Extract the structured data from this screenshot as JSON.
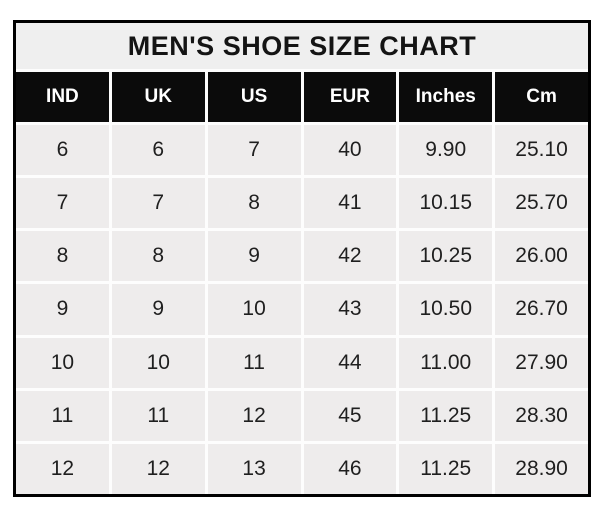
{
  "colors": {
    "border": "#000000",
    "title_bg": "#efefef",
    "header_bg": "#0b0b0b",
    "header_text": "#ffffff",
    "cell_bg": "#eeecec",
    "cell_text": "#1f1f1f",
    "gridline": "#fdfdfd",
    "page_bg": "#ffffff"
  },
  "chart_data": {
    "type": "table",
    "title": "MEN'S SHOE SIZE CHART",
    "columns": [
      "IND",
      "UK",
      "US",
      "EUR",
      "Inches",
      "Cm"
    ],
    "rows": [
      [
        "6",
        "6",
        "7",
        "40",
        "9.90",
        "25.10"
      ],
      [
        "7",
        "7",
        "8",
        "41",
        "10.15",
        "25.70"
      ],
      [
        "8",
        "8",
        "9",
        "42",
        "10.25",
        "26.00"
      ],
      [
        "9",
        "9",
        "10",
        "43",
        "10.50",
        "26.70"
      ],
      [
        "10",
        "10",
        "11",
        "44",
        "11.00",
        "27.90"
      ],
      [
        "11",
        "11",
        "12",
        "45",
        "11.25",
        "28.30"
      ],
      [
        "12",
        "12",
        "13",
        "46",
        "11.25",
        "28.90"
      ]
    ]
  }
}
